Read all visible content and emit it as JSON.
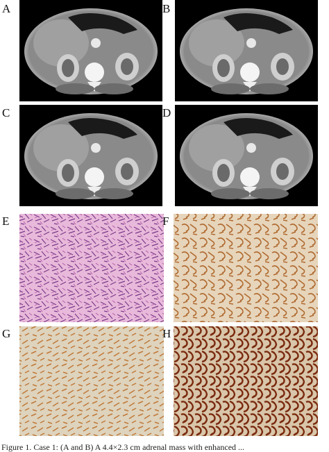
{
  "figure": {
    "panels": [
      {
        "label": "A"
      },
      {
        "label": "B"
      },
      {
        "label": "C"
      },
      {
        "label": "D"
      },
      {
        "label": "E"
      },
      {
        "label": "F"
      },
      {
        "label": "G"
      },
      {
        "label": "H"
      }
    ],
    "caption": "Figure 1. Case 1: (A and B) A 4.4×2.3 cm adrenal mass with enhanced ..."
  }
}
